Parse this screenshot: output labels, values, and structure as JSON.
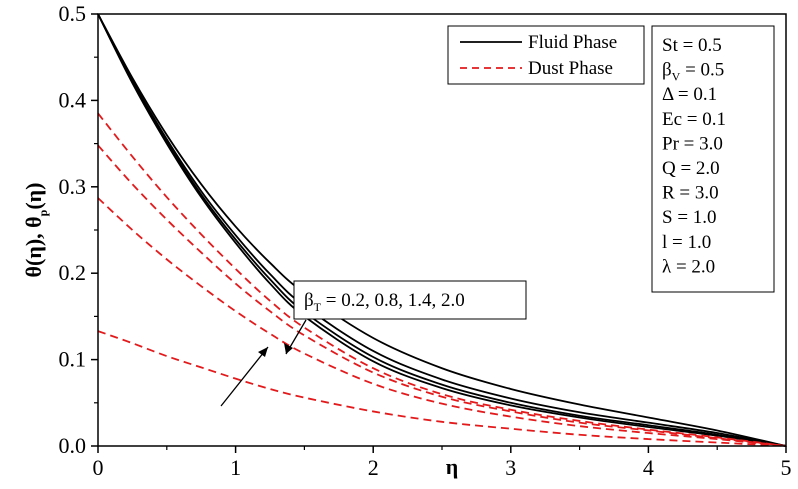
{
  "chart_data": {
    "type": "line",
    "xlabel": "η",
    "ylabel": {
      "main_a": "θ(η), θ",
      "sub": "p",
      "main_b": "(η)"
    },
    "xlim": [
      0,
      5
    ],
    "ylim": [
      0,
      0.5
    ],
    "x_ticks": [
      "0",
      "1",
      "2",
      "3",
      "4",
      "5"
    ],
    "y_ticks": [
      "0.0",
      "0.1",
      "0.2",
      "0.3",
      "0.4",
      "0.5"
    ],
    "grid": false,
    "legend": {
      "placement": "top-right",
      "entries": [
        {
          "label": "Fluid Phase",
          "color": "#000000",
          "dash": "solid"
        },
        {
          "label": "Dust Phase",
          "color": "#e31a1c",
          "dash": "dashed"
        }
      ]
    },
    "parameters": [
      {
        "main": "St = 0.5"
      },
      {
        "main": "β",
        "sub": "V",
        "tail": " = 0.5"
      },
      {
        "main": "Δ = 0.1"
      },
      {
        "main": "Ec = 0.1"
      },
      {
        "main": "Pr = 3.0"
      },
      {
        "main": "Q = 2.0"
      },
      {
        "main": "R = 3.0"
      },
      {
        "main": "S = 1.0"
      },
      {
        "main": "l = 1.0"
      },
      {
        "main": "λ = 2.0"
      }
    ],
    "annotation": {
      "main": "β",
      "sub": "T",
      "tail": " = 0.2, 0.8, 1.4, 2.0"
    },
    "series": [
      {
        "group": "Fluid Phase",
        "color": "#000000",
        "dash": "solid",
        "x": [
          0,
          0.25,
          0.5,
          0.75,
          1.0,
          1.25,
          1.5,
          2.0,
          2.5,
          3.0,
          3.5,
          4.0,
          4.5,
          5.0
        ],
        "y": [
          0.5,
          0.42,
          0.35,
          0.288,
          0.235,
          0.188,
          0.15,
          0.098,
          0.067,
          0.047,
          0.033,
          0.022,
          0.012,
          0.0
        ]
      },
      {
        "group": "Fluid Phase",
        "color": "#000000",
        "dash": "solid",
        "x": [
          0,
          0.25,
          0.5,
          0.75,
          1.0,
          1.25,
          1.5,
          2.0,
          2.5,
          3.0,
          3.5,
          4.0,
          4.5,
          5.0
        ],
        "y": [
          0.5,
          0.421,
          0.352,
          0.291,
          0.239,
          0.193,
          0.155,
          0.103,
          0.071,
          0.05,
          0.035,
          0.024,
          0.013,
          0.0
        ]
      },
      {
        "group": "Fluid Phase",
        "color": "#000000",
        "dash": "solid",
        "x": [
          0,
          0.25,
          0.5,
          0.75,
          1.0,
          1.25,
          1.5,
          2.0,
          2.5,
          3.0,
          3.5,
          4.0,
          4.5,
          5.0
        ],
        "y": [
          0.5,
          0.423,
          0.355,
          0.295,
          0.244,
          0.199,
          0.162,
          0.11,
          0.077,
          0.055,
          0.039,
          0.027,
          0.015,
          0.0
        ]
      },
      {
        "group": "Fluid Phase",
        "color": "#000000",
        "dash": "solid",
        "x": [
          0,
          0.25,
          0.5,
          0.75,
          1.0,
          1.25,
          1.5,
          2.0,
          2.5,
          3.0,
          3.5,
          4.0,
          4.5,
          5.0
        ],
        "y": [
          0.5,
          0.426,
          0.36,
          0.303,
          0.254,
          0.212,
          0.177,
          0.125,
          0.09,
          0.066,
          0.048,
          0.033,
          0.018,
          0.0
        ]
      },
      {
        "group": "Dust Phase",
        "color": "#e31a1c",
        "dash": "dashed",
        "x": [
          0,
          0.25,
          0.5,
          0.75,
          1.0,
          1.25,
          1.5,
          2.0,
          2.5,
          3.0,
          3.5,
          4.0,
          4.5,
          5.0
        ],
        "y": [
          0.385,
          0.335,
          0.288,
          0.245,
          0.205,
          0.168,
          0.137,
          0.09,
          0.06,
          0.042,
          0.029,
          0.019,
          0.01,
          0.0
        ]
      },
      {
        "group": "Dust Phase",
        "color": "#e31a1c",
        "dash": "dashed",
        "x": [
          0,
          0.25,
          0.5,
          0.75,
          1.0,
          1.25,
          1.5,
          2.0,
          2.5,
          3.0,
          3.5,
          4.0,
          4.5,
          5.0
        ],
        "y": [
          0.348,
          0.303,
          0.262,
          0.224,
          0.188,
          0.156,
          0.128,
          0.085,
          0.057,
          0.04,
          0.027,
          0.018,
          0.009,
          0.0
        ]
      },
      {
        "group": "Dust Phase",
        "color": "#e31a1c",
        "dash": "dashed",
        "x": [
          0,
          0.25,
          0.5,
          0.75,
          1.0,
          1.25,
          1.5,
          2.0,
          2.5,
          3.0,
          3.5,
          4.0,
          4.5,
          5.0
        ],
        "y": [
          0.287,
          0.25,
          0.216,
          0.185,
          0.156,
          0.13,
          0.107,
          0.072,
          0.049,
          0.034,
          0.023,
          0.015,
          0.008,
          0.0
        ]
      },
      {
        "group": "Dust Phase",
        "color": "#e31a1c",
        "dash": "dashed",
        "x": [
          0,
          0.25,
          0.5,
          0.75,
          1.0,
          1.25,
          1.5,
          2.0,
          2.5,
          3.0,
          3.5,
          4.0,
          4.5,
          5.0
        ],
        "y": [
          0.133,
          0.119,
          0.104,
          0.091,
          0.078,
          0.066,
          0.056,
          0.04,
          0.028,
          0.02,
          0.013,
          0.008,
          0.004,
          0.0
        ]
      }
    ]
  }
}
